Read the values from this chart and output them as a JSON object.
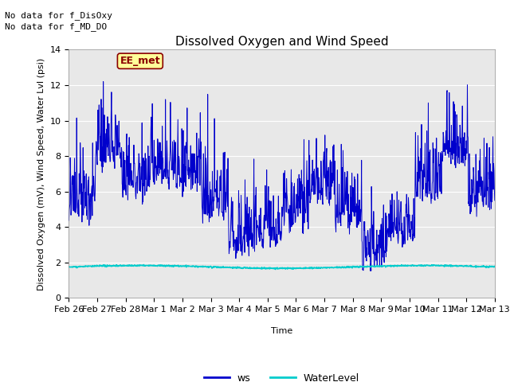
{
  "title": "Dissolved Oxygen and Wind Speed",
  "ylabel": "Dissolved Oxygen (mV), Wind Speed, Water Lvl (psi)",
  "xlabel": "Time",
  "no_data_text": [
    "No data for f_DisOxy",
    "No data for f_MD_DO"
  ],
  "ee_met_label": "EE_met",
  "ylim": [
    0,
    14
  ],
  "yticks": [
    0,
    2,
    4,
    6,
    8,
    10,
    12,
    14
  ],
  "xtick_labels": [
    "Feb 26",
    "Feb 27",
    "Feb 28",
    "Mar 1",
    "Mar 2",
    "Mar 3",
    "Mar 4",
    "Mar 5",
    "Mar 6",
    "Mar 7",
    "Mar 8",
    "Mar 9",
    "Mar 10",
    "Mar 11",
    "Mar 12",
    "Mar 13"
  ],
  "ws_color": "#0000CC",
  "water_level_color": "#00CCCC",
  "background_color": "#E8E8E8",
  "legend_ws": "ws",
  "legend_wl": "WaterLevel",
  "title_fontsize": 11,
  "axis_fontsize": 8,
  "tick_fontsize": 8,
  "n_days": 16,
  "n_points": 1200
}
